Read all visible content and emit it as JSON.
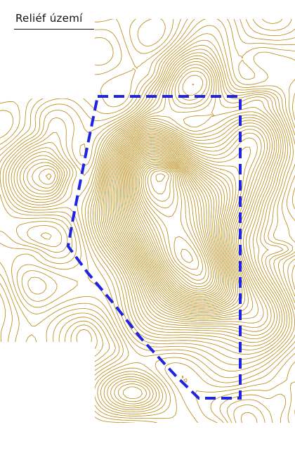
{
  "map": {
    "title": "Reliéf území",
    "style": {
      "background": "#ffffff",
      "contour_color": "#b8860b",
      "boundary_color": "#1f24e0",
      "title_color": "#111111"
    },
    "layers": [
      {
        "name": "contour-lines",
        "type": "topographic-contours"
      },
      {
        "name": "area-boundary",
        "type": "dashed-polygon"
      }
    ]
  }
}
